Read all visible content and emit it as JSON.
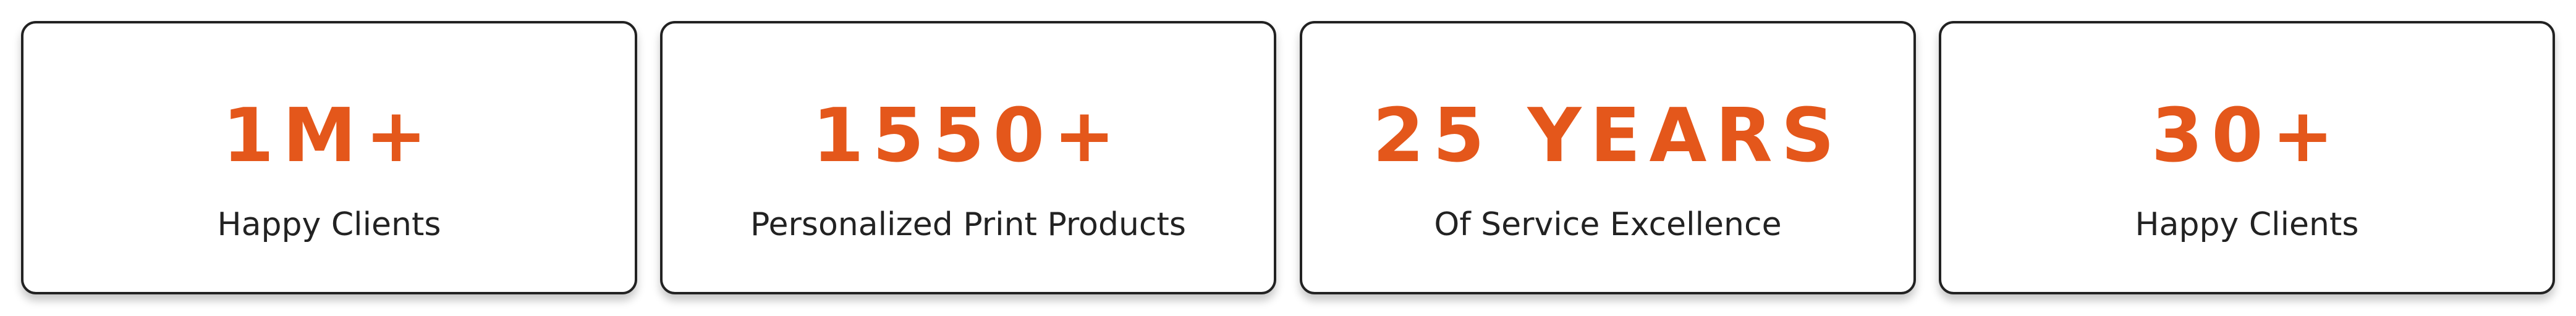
{
  "colors": {
    "accent": "#e4571b",
    "text": "#222222",
    "border": "#222222",
    "background": "#ffffff"
  },
  "stats": [
    {
      "value": "1M+",
      "label": "Happy Clients"
    },
    {
      "value": "1550+",
      "label": "Personalized Print Products"
    },
    {
      "value": "25 YEARS",
      "label": "Of Service Excellence"
    },
    {
      "value": "30+",
      "label": "Happy Clients"
    }
  ]
}
